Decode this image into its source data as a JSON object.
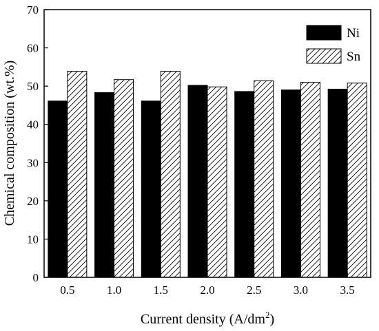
{
  "chart_data": {
    "type": "bar",
    "xlabel": "Current density (A/dm²)",
    "xlabel_main": "Current density (A/dm",
    "xlabel_sup": "2",
    "xlabel_end": ")",
    "ylabel": "Chemical composition (wt.%)",
    "categories": [
      "0.5",
      "1.0",
      "1.5",
      "2.0",
      "2.5",
      "3.0",
      "3.5"
    ],
    "ylim": [
      0,
      70
    ],
    "yticks": [
      "0",
      "10",
      "20",
      "30",
      "40",
      "50",
      "60",
      "70"
    ],
    "legend_position": "top-right",
    "series": [
      {
        "name": "Ni",
        "color": "#000000",
        "pattern": "solid",
        "values": [
          46.1,
          48.3,
          46.1,
          50.2,
          48.6,
          49.0,
          49.2
        ]
      },
      {
        "name": "Sn",
        "color": "#ffffff",
        "pattern": "diagonal-hatch",
        "values": [
          53.9,
          51.7,
          53.9,
          49.8,
          51.4,
          51.0,
          50.8
        ]
      }
    ]
  }
}
